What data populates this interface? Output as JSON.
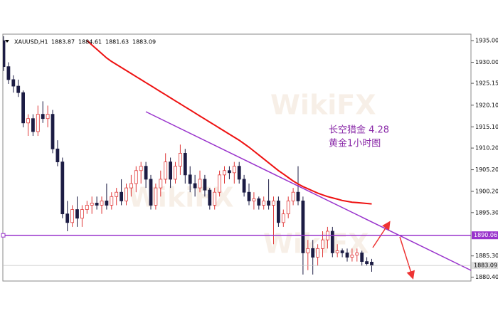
{
  "chart_data": {
    "type": "candlestick",
    "symbol": "XAUUSD,H1",
    "annotation": [
      "长空猎金  4.28",
      "黄金1小时图"
    ],
    "watermark": "WikiFX",
    "ylim": [
      1879.5,
      1936.5
    ],
    "yticks": [
      {
        "value": 1935,
        "label": "1935.00"
      },
      {
        "value": 1930,
        "label": "1930.00"
      },
      {
        "value": 1925.15,
        "label": "1925.15"
      },
      {
        "value": 1920.1,
        "label": "1920.10"
      },
      {
        "value": 1915.1,
        "label": "1915.10"
      },
      {
        "value": 1910.2,
        "label": "1910.20"
      },
      {
        "value": 1905.2,
        "label": "1905.20"
      },
      {
        "value": 1900.2,
        "label": "1900.20"
      },
      {
        "value": 1895.3,
        "label": "1895.30"
      },
      {
        "value": 1885.3,
        "label": "1885.30"
      },
      {
        "value": 1880.4,
        "label": "1880.40"
      }
    ],
    "hline": {
      "value": 1890.06,
      "label": "1890.06",
      "color": "#9933cc"
    },
    "price_line": {
      "value": 1883.09,
      "label": "1883.09",
      "color": "#c0c0c0"
    },
    "bull_color": "#e03a3a",
    "bear_color": "#1c1c44",
    "ohlc": [
      [
        1935,
        1936,
        1928,
        1929
      ],
      [
        1929,
        1930,
        1925,
        1926
      ],
      [
        1926,
        1927,
        1923,
        1924.5
      ],
      [
        1924.5,
        1926,
        1922,
        1923
      ],
      [
        1923,
        1923.5,
        1915,
        1916
      ],
      [
        1916,
        1918,
        1913,
        1917
      ],
      [
        1917,
        1918,
        1913,
        1914
      ],
      [
        1914,
        1920,
        1913,
        1918
      ],
      [
        1918,
        1921,
        1916,
        1917
      ],
      [
        1917,
        1920,
        1915,
        1918
      ],
      [
        1918,
        1919,
        1909,
        1910
      ],
      [
        1910,
        1912,
        1906,
        1907
      ],
      [
        1907,
        1908,
        1894,
        1895
      ],
      [
        1895,
        1898,
        1891,
        1893
      ],
      [
        1893,
        1897,
        1892,
        1896
      ],
      [
        1896,
        1899,
        1892,
        1894
      ],
      [
        1894,
        1897,
        1892,
        1896
      ],
      [
        1896,
        1898,
        1895,
        1897
      ],
      [
        1897,
        1899,
        1895,
        1897.5
      ],
      [
        1897.5,
        1899,
        1896,
        1897
      ],
      [
        1897,
        1899,
        1895,
        1898
      ],
      [
        1898,
        1902,
        1896,
        1897
      ],
      [
        1897,
        1900,
        1896,
        1899
      ],
      [
        1899,
        1901,
        1897,
        1900
      ],
      [
        1900,
        1903,
        1897,
        1898
      ],
      [
        1898,
        1902,
        1897,
        1901
      ],
      [
        1901,
        1904,
        1899,
        1902
      ],
      [
        1902,
        1906,
        1900,
        1905
      ],
      [
        1905,
        1907,
        1902,
        1906
      ],
      [
        1906,
        1907,
        1901,
        1903
      ],
      [
        1903,
        1904,
        1896,
        1897
      ],
      [
        1897,
        1902,
        1896,
        1901
      ],
      [
        1901,
        1905,
        1899,
        1903
      ],
      [
        1903,
        1909,
        1902,
        1907
      ],
      [
        1907,
        1908,
        1901,
        1903
      ],
      [
        1903,
        1907,
        1902,
        1906
      ],
      [
        1906,
        1911,
        1904,
        1909
      ],
      [
        1909,
        1910,
        1902,
        1904
      ],
      [
        1904,
        1906,
        1900,
        1902
      ],
      [
        1902,
        1904,
        1899,
        1901
      ],
      [
        1901,
        1905,
        1900,
        1903
      ],
      [
        1903,
        1904,
        1899,
        1900.5
      ],
      [
        1900.5,
        1901,
        1896,
        1897
      ],
      [
        1897,
        1901,
        1896,
        1900
      ],
      [
        1900,
        1905,
        1899,
        1904
      ],
      [
        1904,
        1906,
        1902,
        1905
      ],
      [
        1905,
        1906,
        1903,
        1904.5
      ],
      [
        1904.5,
        1907,
        1902,
        1906
      ],
      [
        1906,
        1907,
        1902,
        1903
      ],
      [
        1903,
        1904,
        1899,
        1900
      ],
      [
        1900,
        1902,
        1897,
        1898
      ],
      [
        1898,
        1900,
        1896,
        1898.5
      ],
      [
        1898.5,
        1899,
        1896,
        1897
      ],
      [
        1897,
        1899,
        1896,
        1898
      ],
      [
        1898,
        1903,
        1896,
        1897
      ],
      [
        1897,
        1899,
        1888,
        1898
      ],
      [
        1898,
        1899,
        1892,
        1893
      ],
      [
        1893,
        1896,
        1892,
        1895
      ],
      [
        1895,
        1899,
        1894,
        1898
      ],
      [
        1898,
        1901,
        1897,
        1900
      ],
      [
        1900,
        1906,
        1897,
        1898
      ],
      [
        1898,
        1899,
        1881,
        1886
      ],
      [
        1886,
        1889,
        1882,
        1887
      ],
      [
        1887,
        1889,
        1881,
        1885
      ],
      [
        1885,
        1888,
        1883,
        1887
      ],
      [
        1887,
        1891,
        1885,
        1889
      ],
      [
        1889,
        1892,
        1887,
        1891
      ],
      [
        1891,
        1892,
        1885,
        1886
      ],
      [
        1886,
        1888,
        1885,
        1886.5
      ],
      [
        1886.5,
        1887,
        1885,
        1886
      ],
      [
        1886,
        1887,
        1884,
        1885
      ],
      [
        1885,
        1887,
        1884,
        1885.5
      ],
      [
        1885.5,
        1887,
        1884,
        1886
      ],
      [
        1886,
        1886.5,
        1883,
        1884
      ],
      [
        1884,
        1885,
        1883,
        1883.5
      ],
      [
        1883.87,
        1884.61,
        1881.63,
        1883.09
      ]
    ],
    "series": [
      {
        "type": "line",
        "color": "#ee1111",
        "values": [
          null,
          null,
          null,
          null,
          null,
          null,
          null,
          null,
          null,
          null,
          null,
          null,
          null,
          null,
          null,
          null,
          null,
          1935,
          1934,
          1933,
          1932,
          1931,
          1930.2,
          1929.5,
          1928.8,
          1928.1,
          1927.4,
          1926.7,
          1926,
          1925.3,
          1924.6,
          1923.9,
          1923.2,
          1922.5,
          1921.8,
          1921.1,
          1920.4,
          1919.7,
          1919,
          1918.3,
          1917.6,
          1916.9,
          1916.2,
          1915.5,
          1914.8,
          1914.1,
          1913.4,
          1912.7,
          1912,
          1911.2,
          1910.4,
          1909.5,
          1908.6,
          1907.7,
          1906.8,
          1905.9,
          1905,
          1904.2,
          1903.4,
          1902.6,
          1901.9,
          1901.3,
          1900.8,
          1900.3,
          1899.8,
          1899.4,
          1899,
          1898.7,
          1898.4,
          1898.1,
          1897.9,
          1897.7,
          1897.6,
          1897.5,
          1897.4,
          1897.3
        ]
      }
    ]
  }
}
